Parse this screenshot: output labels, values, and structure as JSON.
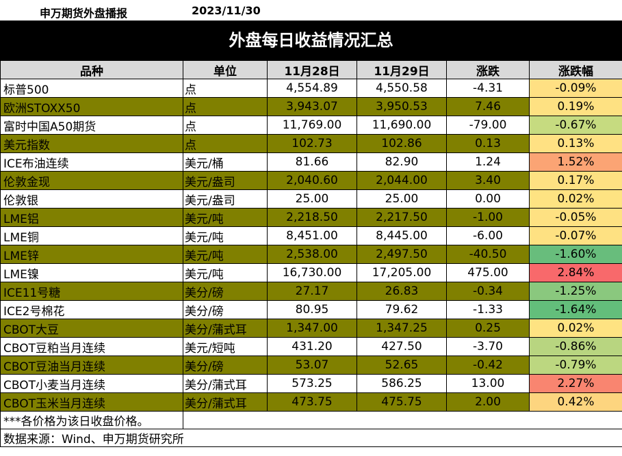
{
  "header": {
    "brand": "申万期货外盘播报",
    "date": "2023/11/30"
  },
  "title": "外盘每日收益情况汇总",
  "columns": [
    "品种",
    "单位",
    "11月28日",
    "11月29日",
    "涨跌",
    "涨跌幅"
  ],
  "colors": {
    "header_bg": "#d9d9d9",
    "olive_row": "#808000",
    "pct_colors": {
      "-0.09%": "#ffe083",
      "0.19%": "#fee182",
      "-0.67%": "#c6db80",
      "0.13%": "#ffe183",
      "1.52%": "#fba474",
      "0.17%": "#fee182",
      "0.02%": "#fee382",
      "-0.05%": "#fee182",
      "-0.07%": "#fee182",
      "-1.60%": "#68bd7c",
      "2.84%": "#f8696b",
      "-1.25%": "#8ac87e",
      "-1.64%": "#63be7b",
      "-0.86%": "#b8d580",
      "-0.79%": "#bcd780",
      "2.27%": "#f98570",
      "0.42%": "#fdd57f"
    }
  },
  "rows": [
    {
      "name": "标普500",
      "unit": "点",
      "d1": "4,554.89",
      "d2": "4,550.58",
      "chg": "-4.31",
      "pct": "-0.09%",
      "olive": false
    },
    {
      "name": "欧洲STOXX50",
      "unit": "点",
      "d1": "3,943.07",
      "d2": "3,950.53",
      "chg": "7.46",
      "pct": "0.19%",
      "olive": true
    },
    {
      "name": "富时中国A50期货",
      "unit": "点",
      "d1": "11,769.00",
      "d2": "11,690.00",
      "chg": "-79.00",
      "pct": "-0.67%",
      "olive": false
    },
    {
      "name": "美元指数",
      "unit": "点",
      "d1": "102.73",
      "d2": "102.86",
      "chg": "0.13",
      "pct": "0.13%",
      "olive": true
    },
    {
      "name": "ICE布油连续",
      "unit": "美元/桶",
      "d1": "81.66",
      "d2": "82.90",
      "chg": "1.24",
      "pct": "1.52%",
      "olive": false
    },
    {
      "name": "伦敦金现",
      "unit": "美元/盎司",
      "d1": "2,040.60",
      "d2": "2,044.00",
      "chg": "3.40",
      "pct": "0.17%",
      "olive": true
    },
    {
      "name": "伦敦银",
      "unit": "美元/盎司",
      "d1": "25.00",
      "d2": "25.00",
      "chg": "0.00",
      "pct": "0.02%",
      "olive": false
    },
    {
      "name": "LME铝",
      "unit": "美元/吨",
      "d1": "2,218.50",
      "d2": "2,217.50",
      "chg": "-1.00",
      "pct": "-0.05%",
      "olive": true
    },
    {
      "name": "LME铜",
      "unit": "美元/吨",
      "d1": "8,451.00",
      "d2": "8,445.00",
      "chg": "-6.00",
      "pct": "-0.07%",
      "olive": false
    },
    {
      "name": "LME锌",
      "unit": "美元/吨",
      "d1": "2,538.00",
      "d2": "2,497.50",
      "chg": "-40.50",
      "pct": "-1.60%",
      "olive": true
    },
    {
      "name": "LME镍",
      "unit": "美元/吨",
      "d1": "16,730.00",
      "d2": "17,205.00",
      "chg": "475.00",
      "pct": "2.84%",
      "olive": false
    },
    {
      "name": "ICE11号糖",
      "unit": "美分/磅",
      "d1": "27.17",
      "d2": "26.83",
      "chg": "-0.34",
      "pct": "-1.25%",
      "olive": true
    },
    {
      "name": "ICE2号棉花",
      "unit": "美分/磅",
      "d1": "80.95",
      "d2": "79.62",
      "chg": "-1.33",
      "pct": "-1.64%",
      "olive": false
    },
    {
      "name": "CBOT大豆",
      "unit": "美分/蒲式耳",
      "d1": "1,347.00",
      "d2": "1,347.25",
      "chg": "0.25",
      "pct": "0.02%",
      "olive": true
    },
    {
      "name": "CBOT豆粕当月连续",
      "unit": "美元/短吨",
      "d1": "431.20",
      "d2": "427.50",
      "chg": "-3.70",
      "pct": "-0.86%",
      "olive": false
    },
    {
      "name": "CBOT豆油当月连续",
      "unit": "美分/磅",
      "d1": "53.07",
      "d2": "52.65",
      "chg": "-0.42",
      "pct": "-0.79%",
      "olive": true
    },
    {
      "name": "CBOT小麦当月连续",
      "unit": "美分/蒲式耳",
      "d1": "573.25",
      "d2": "586.25",
      "chg": "13.00",
      "pct": "2.27%",
      "olive": false
    },
    {
      "name": "CBOT玉米当月连续",
      "unit": "美分/蒲式耳",
      "d1": "473.75",
      "d2": "475.75",
      "chg": "2.00",
      "pct": "0.42%",
      "olive": true
    }
  ],
  "footnote": "***各价格为该日收盘价格。",
  "source": "数据来源：Wind、申万期货研究所"
}
